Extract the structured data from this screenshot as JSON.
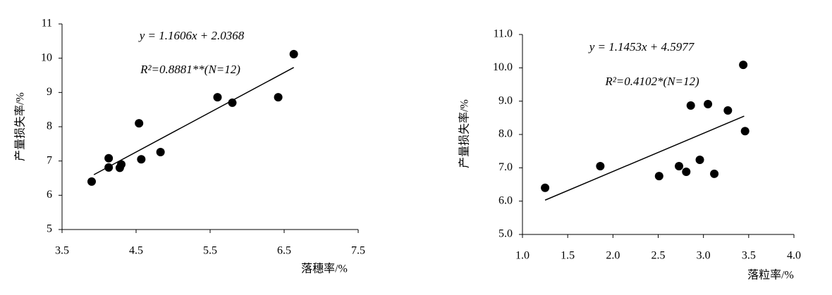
{
  "chart_data": [
    {
      "type": "scatter",
      "xlabel": "落穗率/%",
      "ylabel": "产量损失率/%",
      "annotations": [
        "y = 1.1606x + 2.0368",
        "R²=0.8881**(N=12)"
      ],
      "x": [
        3.9,
        4.13,
        4.13,
        4.3,
        4.28,
        4.54,
        4.57,
        4.83,
        5.6,
        5.8,
        6.42,
        6.63
      ],
      "y": [
        6.4,
        7.08,
        6.81,
        6.9,
        6.8,
        8.1,
        7.05,
        7.26,
        8.86,
        8.7,
        8.86,
        10.12
      ],
      "color": "#000000",
      "trendline": {
        "x": [
          3.93,
          6.63
        ],
        "y": [
          6.6,
          9.73
        ]
      },
      "xlim": [
        3.5,
        7.5
      ],
      "xticks": [
        3.5,
        4.5,
        5.5,
        6.5,
        7.5
      ],
      "ylim": [
        5,
        11
      ],
      "yticks": [
        5,
        6,
        7,
        8,
        9,
        10,
        11
      ]
    },
    {
      "type": "scatter",
      "xlabel": "落粒率/%",
      "ylabel": "产量损失率/%",
      "annotations": [
        "y = 1.1453x + 4.5977",
        "R²=0.4102*(N=12)"
      ],
      "x": [
        1.25,
        1.86,
        2.51,
        2.73,
        2.81,
        2.86,
        2.96,
        3.05,
        3.12,
        3.27,
        3.44,
        3.46
      ],
      "y": [
        6.4,
        7.05,
        6.75,
        7.05,
        6.88,
        8.87,
        7.24,
        8.91,
        6.82,
        8.72,
        10.09,
        8.1
      ],
      "color": "#000000",
      "trendline": {
        "x": [
          1.25,
          3.45
        ],
        "y": [
          6.03,
          8.55
        ]
      },
      "xlim": [
        1.0,
        4.0
      ],
      "xticks": [
        {
          "value": 1.0,
          "label": "1.0"
        },
        {
          "value": 1.5,
          "label": "1.5"
        },
        {
          "value": 2.0,
          "label": "2.0"
        },
        {
          "value": 2.5,
          "label": "2.5"
        },
        {
          "value": 3.0,
          "label": "3.0"
        },
        {
          "value": 3.5,
          "label": "3.5"
        },
        {
          "value": 4.0,
          "label": "4.0"
        }
      ],
      "ylim": [
        5.0,
        11.0
      ],
      "yticks": [
        {
          "value": 5.0,
          "label": "5.0"
        },
        {
          "value": 6.0,
          "label": "6.0"
        },
        {
          "value": 7.0,
          "label": "7.0"
        },
        {
          "value": 8.0,
          "label": "8.0"
        },
        {
          "value": 9.0,
          "label": "9.0"
        },
        {
          "value": 10.0,
          "label": "10.0"
        },
        {
          "value": 11.0,
          "label": "11.0"
        }
      ]
    }
  ]
}
